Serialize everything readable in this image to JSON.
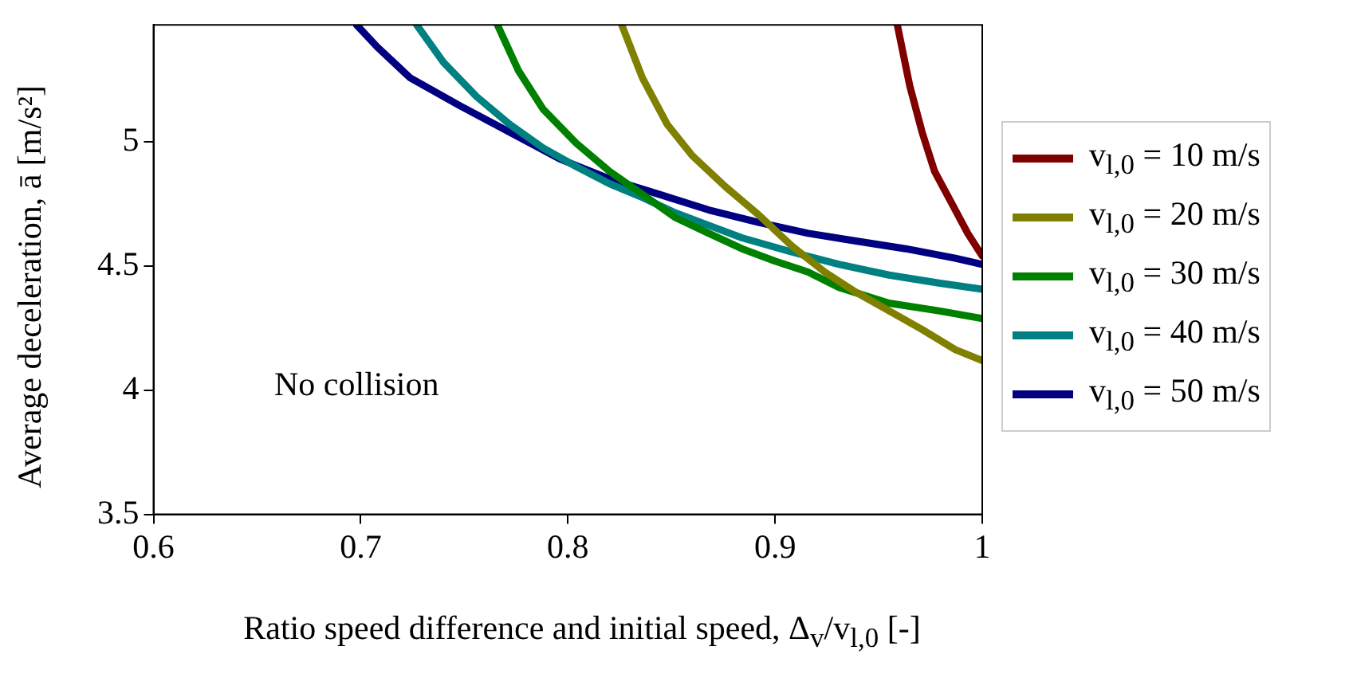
{
  "chart_data": {
    "type": "line",
    "xlabel": "Ratio speed difference and initial speed, Δ$_{v}$/v$_{l,0}$ [-]",
    "ylabel": "Average deceleration, ā [m/s²]",
    "xlim": [
      0.6,
      1
    ],
    "xticks": [
      0.6,
      0.7,
      0.8,
      0.9,
      1
    ],
    "ylim": [
      3.5,
      5.47
    ],
    "yticks": [
      3.5,
      4,
      4.5,
      5
    ],
    "grid": false,
    "legend": "right",
    "marker": "none",
    "line_style": "solid",
    "annotations": [
      "No collision"
    ],
    "series": [
      {
        "name": "v$_{l,0}$ = 10 m/s",
        "color": "#800000",
        "x": [
          0.959,
          0.965,
          0.971,
          0.977,
          0.985,
          0.993,
          1.0
        ],
        "values": [
          5.47,
          5.225,
          5.037,
          4.88,
          4.756,
          4.631,
          4.54
        ]
      },
      {
        "name": "v$_{l,0}$ = 20 m/s",
        "color": "#808000",
        "x": [
          0.826,
          0.836,
          0.848,
          0.86,
          0.876,
          0.892,
          0.908,
          0.924,
          0.939,
          0.955,
          0.971,
          0.987,
          1.0
        ],
        "values": [
          5.47,
          5.256,
          5.069,
          4.944,
          4.819,
          4.706,
          4.581,
          4.475,
          4.394,
          4.319,
          4.244,
          4.163,
          4.119
        ]
      },
      {
        "name": "v$_{l,0}$ = 30 m/s",
        "color": "#008000",
        "x": [
          0.766,
          0.776,
          0.788,
          0.804,
          0.82,
          0.836,
          0.852,
          0.868,
          0.884,
          0.9,
          0.916,
          0.931,
          0.955,
          0.979,
          1.0
        ],
        "values": [
          5.47,
          5.288,
          5.131,
          4.994,
          4.881,
          4.788,
          4.694,
          4.631,
          4.569,
          4.519,
          4.475,
          4.413,
          4.35,
          4.319,
          4.288
        ]
      },
      {
        "name": "v$_{l,0}$ = 40 m/s",
        "color": "#008080",
        "x": [
          0.727,
          0.74,
          0.756,
          0.772,
          0.788,
          0.804,
          0.82,
          0.836,
          0.852,
          0.868,
          0.884,
          0.908,
          0.931,
          0.955,
          0.979,
          1.0
        ],
        "values": [
          5.47,
          5.319,
          5.181,
          5.069,
          4.975,
          4.9,
          4.831,
          4.775,
          4.713,
          4.663,
          4.613,
          4.556,
          4.506,
          4.463,
          4.431,
          4.406
        ]
      },
      {
        "name": "v$_{l,0}$ = 50 m/s",
        "color": "#000080",
        "x": [
          0.698,
          0.708,
          0.724,
          0.748,
          0.772,
          0.796,
          0.82,
          0.844,
          0.868,
          0.892,
          0.916,
          0.939,
          0.963,
          0.987,
          1.0
        ],
        "values": [
          5.47,
          5.381,
          5.256,
          5.144,
          5.038,
          4.931,
          4.85,
          4.788,
          4.725,
          4.675,
          4.631,
          4.6,
          4.569,
          4.531,
          4.506
        ]
      }
    ]
  }
}
